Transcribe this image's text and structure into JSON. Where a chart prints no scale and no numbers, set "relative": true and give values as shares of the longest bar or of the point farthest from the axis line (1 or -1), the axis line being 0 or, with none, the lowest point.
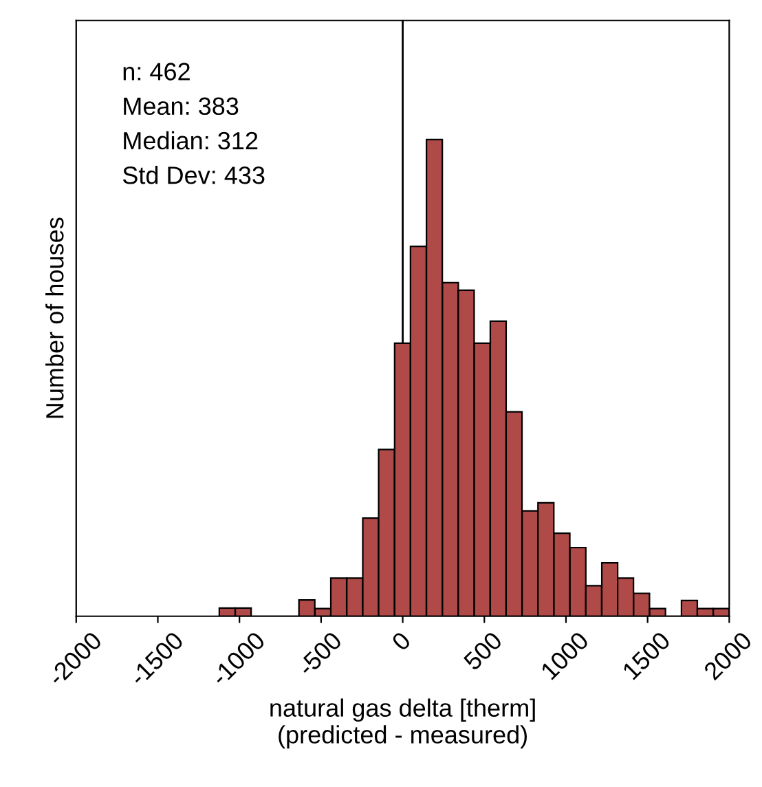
{
  "chart_data": {
    "type": "bar",
    "relative": true,
    "xlabel": "natural gas delta [therm]\n(predicted - measured)",
    "ylabel": "Number of houses",
    "annotations": [
      "n: 462",
      "Mean: 383",
      "Median: 312",
      "Std Dev: 433"
    ],
    "x": [
      -1075,
      -977,
      -880,
      -782,
      -685,
      -587,
      -489,
      -392,
      -294,
      -196,
      -99,
      -1,
      96,
      194,
      292,
      389,
      487,
      585,
      682,
      780,
      877,
      975,
      1073,
      1170,
      1268,
      1365,
      1463,
      1561,
      1658,
      1756,
      1853,
      1951
    ],
    "values": [
      0.017,
      0.017,
      0,
      0,
      0,
      0.034,
      0.016,
      0.08,
      0.08,
      0.206,
      0.35,
      0.573,
      0.776,
      1,
      0.7,
      0.684,
      0.573,
      0.619,
      0.429,
      0.221,
      0.238,
      0.174,
      0.144,
      0.064,
      0.112,
      0.08,
      0.048,
      0.016,
      0,
      0.033,
      0.016,
      0.016
    ],
    "color": "#b04a48",
    "xlim": [
      -2000,
      2000
    ],
    "xticks": [
      -2000,
      -1500,
      -1000,
      -500,
      0,
      500,
      1000,
      1500,
      2000
    ],
    "ref_lines": [
      {
        "axis": "x",
        "value": 0,
        "color": "#000000"
      }
    ],
    "grid": false,
    "tick_labels": "x"
  }
}
